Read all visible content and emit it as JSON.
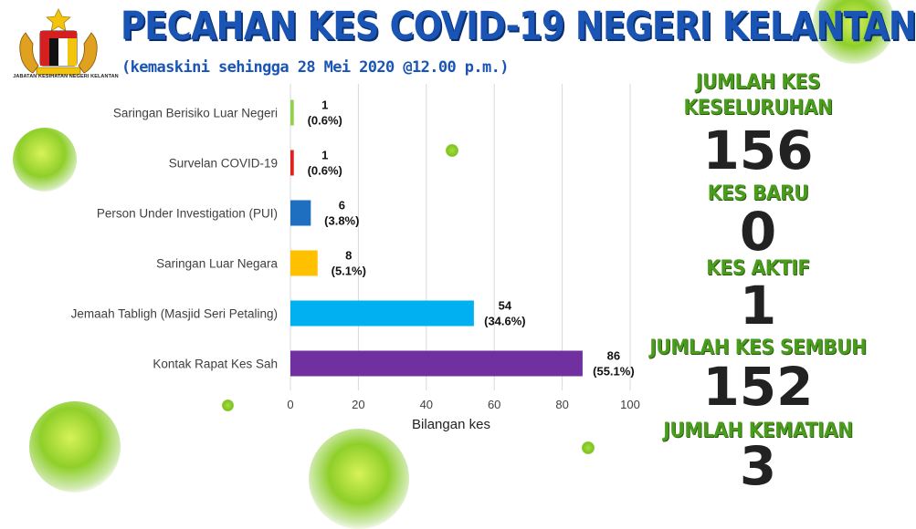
{
  "header": {
    "title": "PECAHAN KES COVID-19 NEGERI KELANTAN",
    "subtitle": "(kemaskini sehingga 28 Mei 2020 @12.00 p.m.)",
    "agency": "JABATAN KESIHATAN NEGERI KELANTAN"
  },
  "chart_data": {
    "type": "bar",
    "orientation": "horizontal",
    "categories": [
      "Saringan Berisiko Luar Negeri",
      "Survelan COVID-19",
      "Person Under Investigation (PUI)",
      "Saringan Luar Negara",
      "Jemaah Tabligh (Masjid Seri Petaling)",
      "Kontak Rapat Kes Sah"
    ],
    "values": [
      1,
      1,
      6,
      8,
      54,
      86
    ],
    "percent_labels": [
      "(0.6%)",
      "(0.6%)",
      "(3.8%)",
      "(5.1%)",
      "(34.6%)",
      "(55.1%)"
    ],
    "colors": [
      "#92d050",
      "#e02020",
      "#1f6fc0",
      "#ffc000",
      "#00b0f0",
      "#7030a0"
    ],
    "xlabel": "Bilangan kes",
    "ylabel": "",
    "xlim": [
      0,
      100
    ],
    "xticks": [
      0,
      20,
      40,
      60,
      80,
      100
    ],
    "grid": true
  },
  "stats": [
    {
      "label": "JUMLAH KES KESELURUHAN",
      "label_lines": [
        "JUMLAH KES",
        "KESELURUHAN"
      ],
      "value": "156"
    },
    {
      "label": "KES BARU",
      "value": "0"
    },
    {
      "label": "KES AKTIF",
      "value": "1"
    },
    {
      "label": "JUMLAH KES SEMBUH",
      "value": "152"
    },
    {
      "label": "JUMLAH KEMATIAN",
      "value": "3"
    }
  ],
  "theme": {
    "title_color": "#1a55b5",
    "stat_label_color": "#4a9c1c",
    "stat_value_color": "#222222",
    "virus_color": "#7cc423"
  },
  "decor": {
    "logo_icon": "coat-of-arms-icon",
    "virus_icon": "virus-icon"
  }
}
